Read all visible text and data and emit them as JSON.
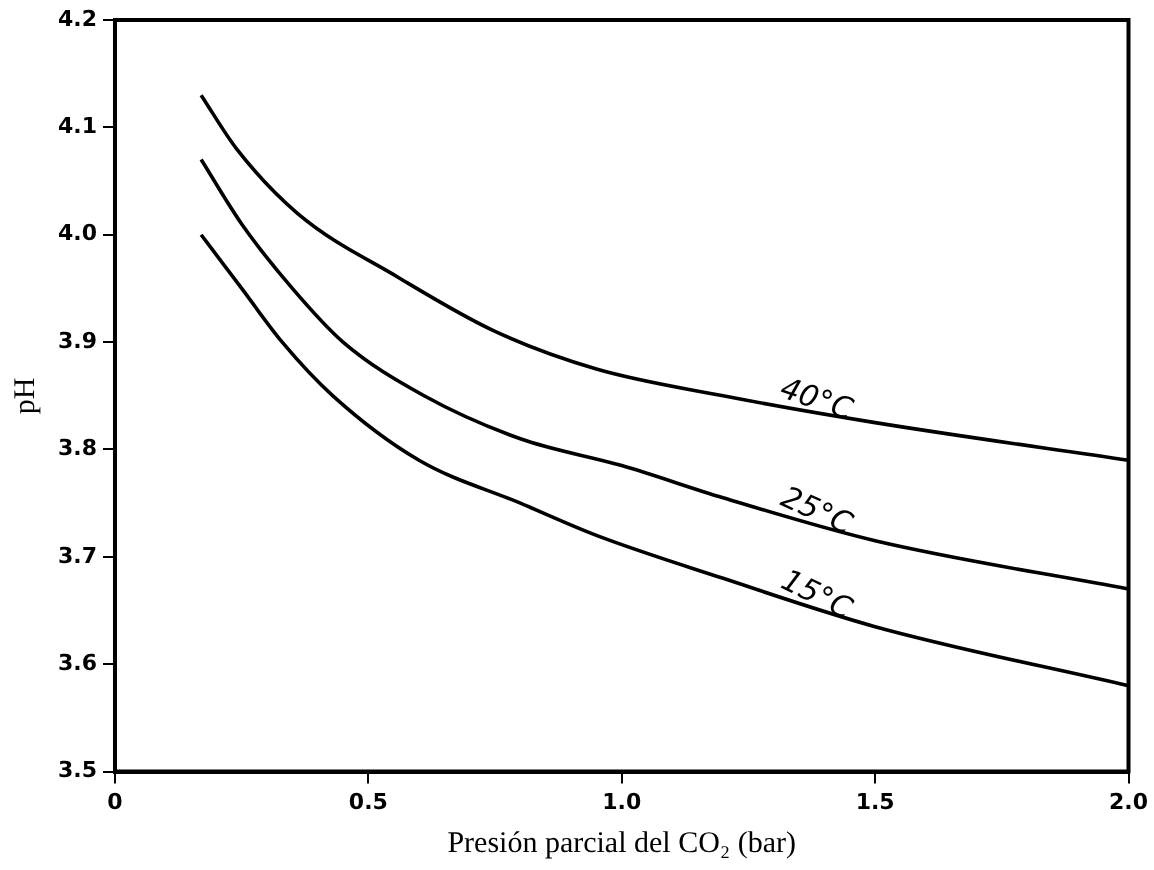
{
  "chart_data": {
    "type": "line",
    "xlabel": "Presión parcial del CO₂ (bar)",
    "ylabel": "pH",
    "xlim": [
      0,
      2.0
    ],
    "xticks": [
      0,
      {
        "value": 0.5,
        "label": "0.5"
      },
      {
        "value": 1.0,
        "label": "1.0"
      },
      {
        "value": 1.5,
        "label": "1.5"
      },
      {
        "value": 2.0,
        "label": "2.0"
      }
    ],
    "ylim": [
      3.5,
      4.2
    ],
    "yticks": [
      {
        "value": 3.5,
        "label": "3.5"
      },
      {
        "value": 3.6,
        "label": "3.6"
      },
      {
        "value": 3.7,
        "label": "3.7"
      },
      {
        "value": 3.8,
        "label": "3.8"
      },
      {
        "value": 3.9,
        "label": "3.9"
      },
      {
        "value": 4.0,
        "label": "4.0"
      },
      {
        "value": 4.1,
        "label": "4.1"
      },
      {
        "value": 4.2,
        "label": "4.2"
      }
    ],
    "grid": false,
    "legend": false,
    "marker": "none",
    "line_style": "solid",
    "series": [
      {
        "name": "40°C",
        "color": "#000000",
        "x": [
          0.17,
          0.24,
          0.36,
          0.56,
          0.75,
          0.95,
          1.2,
          1.5,
          2.0
        ],
        "values": [
          4.13,
          4.08,
          4.02,
          3.96,
          3.91,
          3.875,
          3.85,
          3.825,
          3.79
        ]
      },
      {
        "name": "25°C",
        "color": "#000000",
        "x": [
          0.17,
          0.25,
          0.35,
          0.45,
          0.61,
          0.8,
          1.0,
          1.2,
          1.5,
          2.0
        ],
        "values": [
          4.07,
          4.01,
          3.95,
          3.9,
          3.85,
          3.81,
          3.785,
          3.755,
          3.715,
          3.67
        ]
      },
      {
        "name": "15°C",
        "color": "#000000",
        "x": [
          0.17,
          0.25,
          0.33,
          0.43,
          0.6,
          0.8,
          0.95,
          1.2,
          1.5,
          2.0
        ],
        "values": [
          4.0,
          3.95,
          3.9,
          3.85,
          3.79,
          3.75,
          3.72,
          3.68,
          3.635,
          3.58
        ]
      }
    ]
  }
}
